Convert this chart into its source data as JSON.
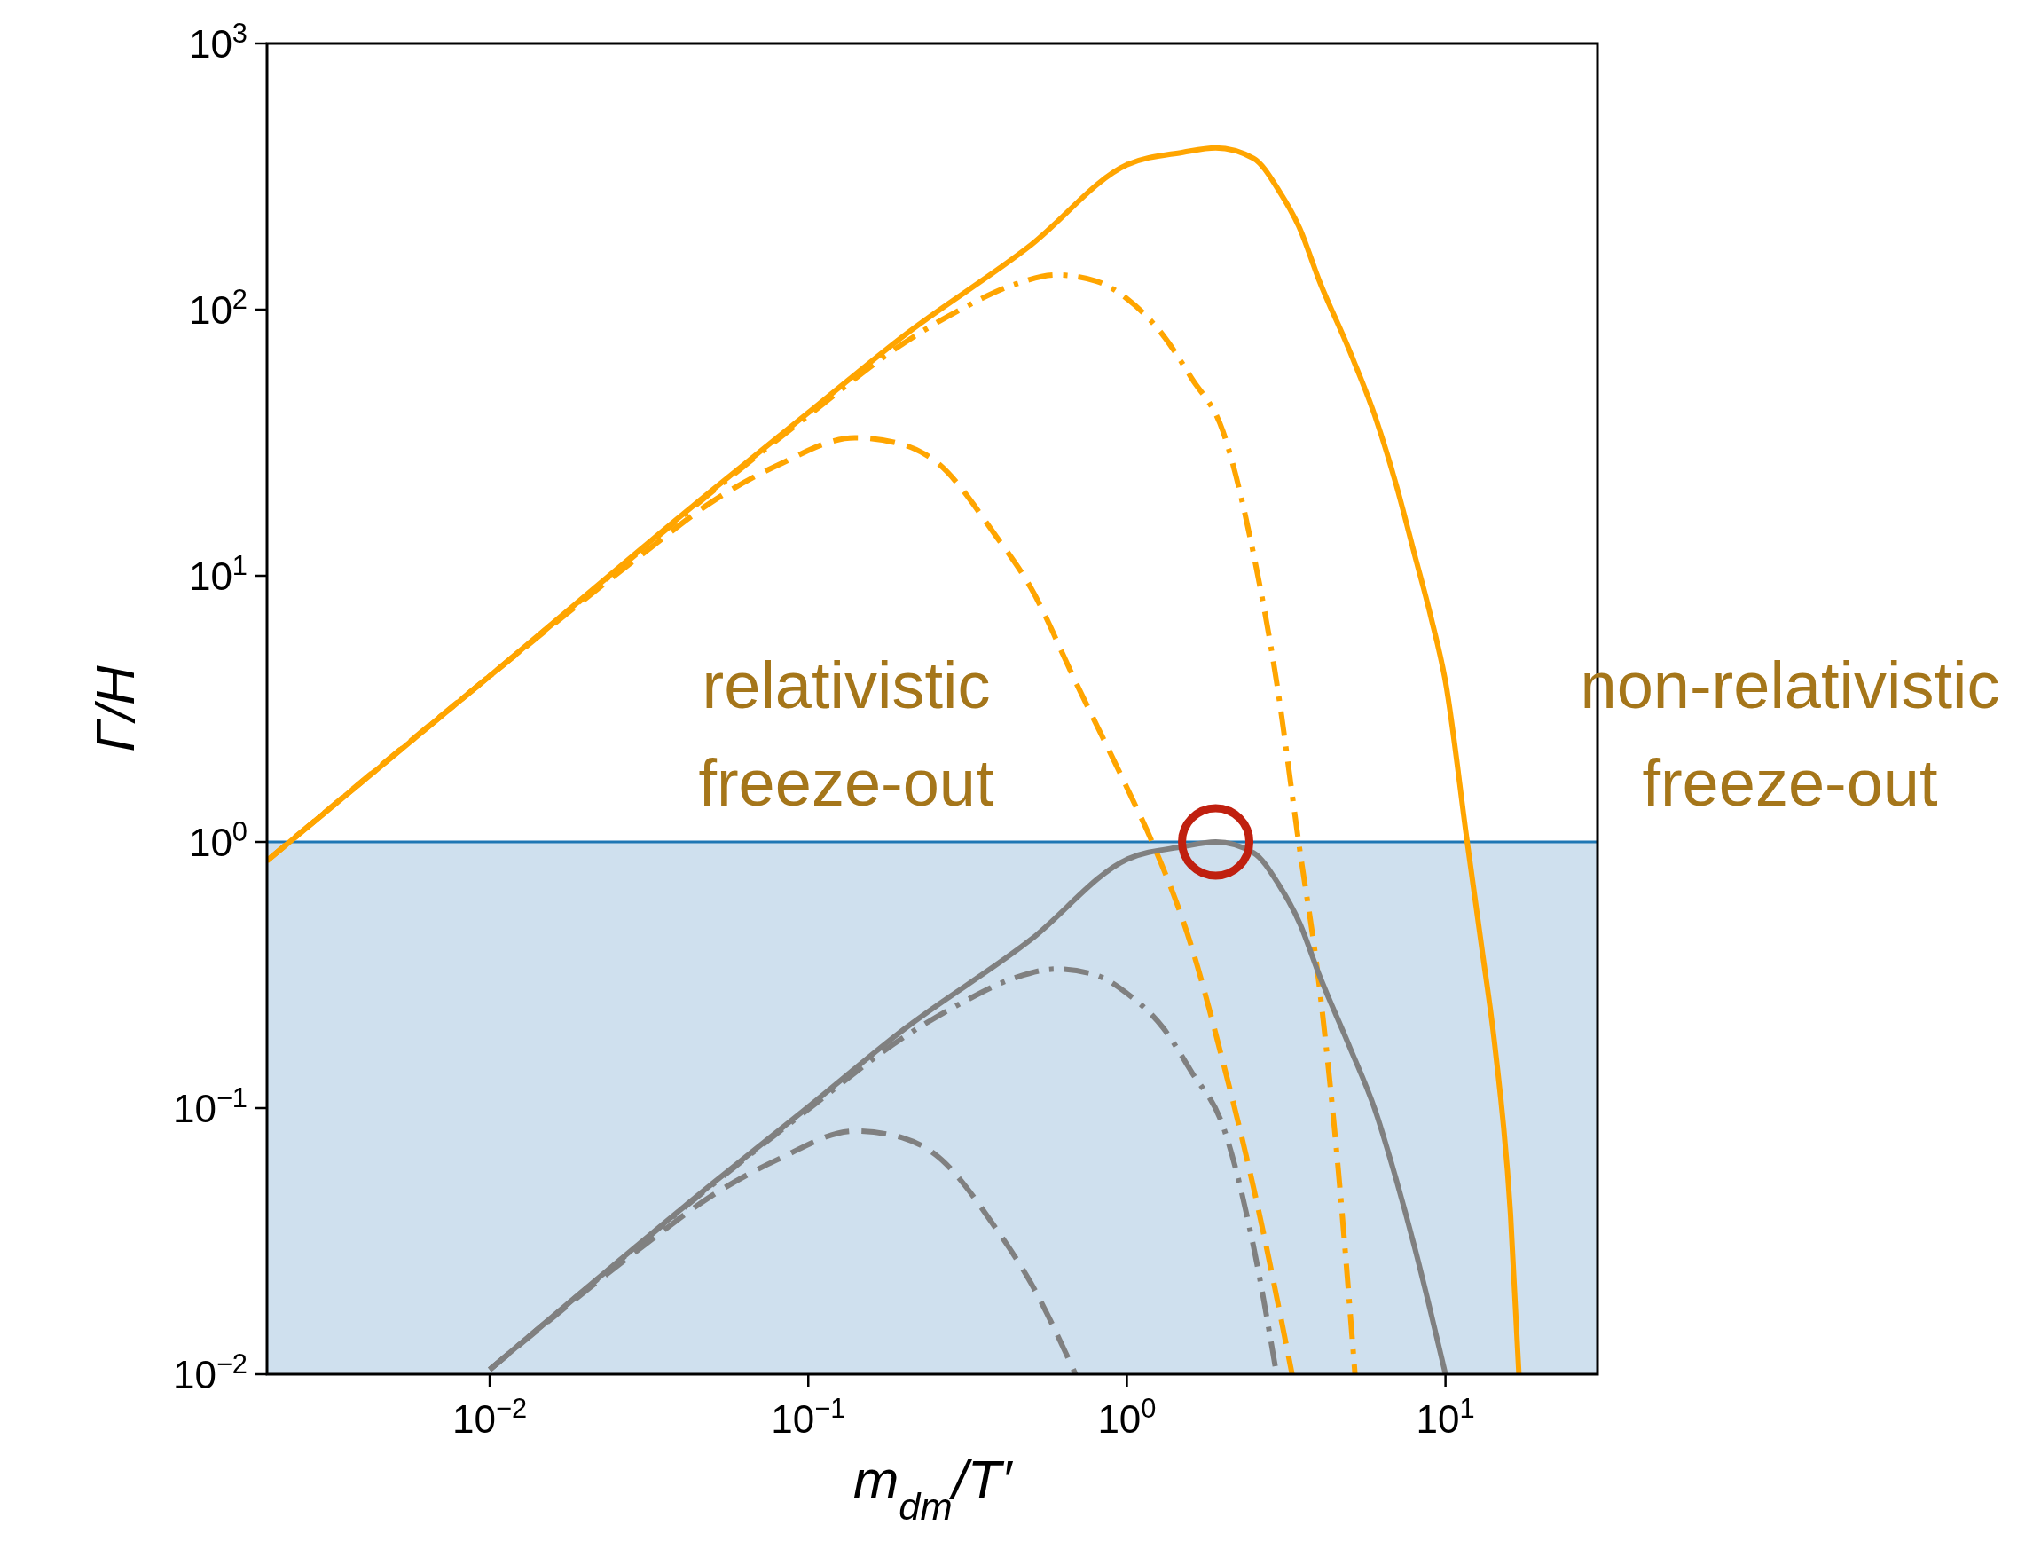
{
  "chart_data": {
    "type": "line",
    "xlabel": "m$_{dm}$/T′",
    "ylabel": "Γ/H",
    "log": "xy",
    "xlim": [
      0.002,
      30
    ],
    "ylim": [
      0.01,
      1000
    ],
    "xticks": [
      {
        "value": 0.01,
        "label": "10$^{−2}$"
      },
      {
        "value": 0.1,
        "label": "10$^{−1}$"
      },
      {
        "value": 1,
        "label": "10$^{0}$"
      },
      {
        "value": 10,
        "label": "10$^{1}$"
      }
    ],
    "yticks": [
      {
        "value": 0.01,
        "label": "10$^{−2}$"
      },
      {
        "value": 0.1,
        "label": "10$^{−1}$"
      },
      {
        "value": 1,
        "label": "10$^{0}$"
      },
      {
        "value": 10,
        "label": "10$^{1}$"
      },
      {
        "value": 100,
        "label": "10$^{2}$"
      },
      {
        "value": 1000,
        "label": "10$^{3}$"
      }
    ],
    "grid": false,
    "series": [
      {
        "color": "#ffa500",
        "line_style": "solid",
        "x": [
          0.002,
          0.01,
          0.05,
          0.1,
          0.2,
          0.5,
          1,
          1.5,
          1.9,
          2.5,
          3,
          3.5,
          4,
          5,
          6,
          7,
          8,
          9,
          10,
          11.7,
          13,
          14.3,
          16,
          17
        ],
        "values": [
          0.85,
          4.2,
          21,
          41,
          80,
          175,
          350,
          390,
          405,
          370,
          280,
          200,
          130,
          70,
          40,
          22,
          12,
          7,
          4,
          1,
          0.4,
          0.17,
          0.04,
          0.01
        ]
      },
      {
        "color": "#ffa500",
        "line_style": "dashdot",
        "x": [
          0.002,
          0.01,
          0.1,
          0.2,
          0.3,
          0.45,
          0.6,
          0.8,
          1,
          1.3,
          1.6,
          2,
          2.5,
          2.95,
          3.46,
          4,
          4.6,
          5.2
        ],
        "values": [
          0.85,
          4.2,
          40,
          75,
          100,
          125,
          135,
          128,
          110,
          80,
          55,
          35,
          12,
          4,
          1,
          0.3,
          0.06,
          0.01
        ]
      },
      {
        "color": "#ffa500",
        "line_style": "dashed",
        "x": [
          0.002,
          0.01,
          0.03,
          0.05,
          0.08,
          0.14,
          0.2,
          0.25,
          0.39,
          0.5,
          0.69,
          1,
          1.2,
          1.6,
          2,
          2.5,
          3.3
        ],
        "values": [
          0.85,
          4.2,
          12,
          19,
          26,
          33,
          31,
          27,
          14,
          9,
          4,
          1.6,
          1,
          0.4,
          0.15,
          0.05,
          0.01
        ]
      },
      {
        "color": "#808080",
        "line_style": "solid",
        "x": [
          0.01,
          0.05,
          0.1,
          0.2,
          0.5,
          1,
          1.5,
          1.9,
          2.5,
          3,
          3.5,
          4,
          5,
          6,
          7,
          8,
          9,
          10
        ],
        "values": [
          0.0104,
          0.052,
          0.101,
          0.198,
          0.43,
          0.86,
          0.96,
          1.0,
          0.91,
          0.69,
          0.49,
          0.32,
          0.17,
          0.099,
          0.054,
          0.03,
          0.017,
          0.01
        ]
      },
      {
        "color": "#808080",
        "line_style": "dashdot",
        "x": [
          0.01,
          0.1,
          0.2,
          0.3,
          0.45,
          0.6,
          0.8,
          1,
          1.3,
          1.6,
          2,
          2.5,
          2.95
        ],
        "values": [
          0.0104,
          0.099,
          0.185,
          0.247,
          0.31,
          0.333,
          0.316,
          0.27,
          0.2,
          0.136,
          0.086,
          0.03,
          0.01
        ]
      },
      {
        "color": "#808080",
        "line_style": "dashed",
        "x": [
          0.01,
          0.03,
          0.05,
          0.08,
          0.14,
          0.2,
          0.25,
          0.39,
          0.5,
          0.69
        ],
        "values": [
          0.0104,
          0.03,
          0.047,
          0.064,
          0.082,
          0.077,
          0.067,
          0.035,
          0.022,
          0.01
        ]
      }
    ],
    "ref_lines": [
      {
        "axis": "y",
        "value": 1,
        "label": null,
        "color": "#1f77b4"
      }
    ],
    "bands": [
      {
        "axis": "y",
        "from": 0.01,
        "to": 1,
        "label": null,
        "color": "#cfe0ee"
      }
    ],
    "annotations": [
      "relativistic\nfreeze-out",
      "non-relativistic\nfreeze-out"
    ]
  }
}
